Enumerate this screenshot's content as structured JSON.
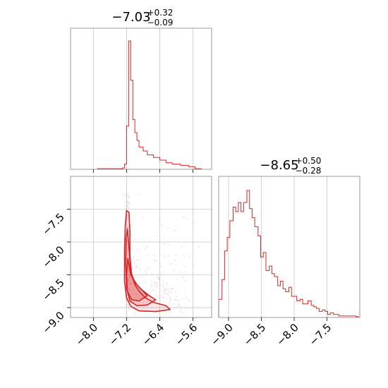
{
  "chart_data": [
    {
      "type": "histogram",
      "panel": "top-left",
      "title": {
        "value": "−7.03",
        "upper": "+0.32",
        "lower": "−0.09"
      },
      "xlim": [
        -8.55,
        -5.15
      ],
      "x_ticks": [
        -8.0,
        -7.2,
        -6.4,
        -5.6
      ],
      "show_x_tick_labels": false,
      "grid": true,
      "color": "#d62728",
      "bin_edges": [
        -7.9,
        -7.3,
        -7.25,
        -7.2,
        -7.15,
        -7.1,
        -7.05,
        -7.0,
        -6.95,
        -6.9,
        -6.8,
        -6.7,
        -6.55,
        -6.4,
        -6.25,
        -6.1,
        -5.9,
        -5.7,
        -5.55,
        -5.4
      ],
      "counts": [
        0.5,
        1,
        4,
        33,
        98,
        68,
        38,
        28,
        22,
        17,
        14,
        11,
        9,
        7,
        5,
        4,
        3,
        2,
        0.5
      ]
    },
    {
      "type": "scatter",
      "panel": "bottom-left",
      "xlim": [
        -8.55,
        -5.15
      ],
      "ylim": [
        -9.15,
        -7.0
      ],
      "x_ticks": [
        -8.0,
        -7.2,
        -6.4,
        -5.6
      ],
      "x_tick_labels": [
        "−8.0",
        "−7.2",
        "−6.4",
        "−5.6"
      ],
      "y_ticks": [
        -7.5,
        -8.0,
        -8.5,
        -9.0
      ],
      "y_tick_labels": [
        "−7.5",
        "−8.0",
        "−8.5",
        "−9.0"
      ],
      "grid": true,
      "color": "#d62728",
      "contours": [
        {
          "level": "outer",
          "points": [
            [
              -7.2,
              -7.52
            ],
            [
              -7.14,
              -7.55
            ],
            [
              -7.12,
              -7.85
            ],
            [
              -7.12,
              -8.2
            ],
            [
              -7.08,
              -8.5
            ],
            [
              -7.0,
              -8.65
            ],
            [
              -6.9,
              -8.75
            ],
            [
              -6.75,
              -8.85
            ],
            [
              -6.55,
              -8.92
            ],
            [
              -6.25,
              -8.97
            ],
            [
              -6.15,
              -9.03
            ],
            [
              -6.5,
              -9.06
            ],
            [
              -6.9,
              -9.05
            ],
            [
              -7.1,
              -8.98
            ],
            [
              -7.2,
              -8.85
            ],
            [
              -7.25,
              -8.6
            ],
            [
              -7.25,
              -8.1
            ],
            [
              -7.23,
              -7.75
            ]
          ]
        },
        {
          "level": "middle",
          "points": [
            [
              -7.18,
              -7.8
            ],
            [
              -7.14,
              -8.1
            ],
            [
              -7.1,
              -8.45
            ],
            [
              -7.0,
              -8.62
            ],
            [
              -6.85,
              -8.72
            ],
            [
              -6.65,
              -8.82
            ],
            [
              -6.5,
              -8.88
            ],
            [
              -6.7,
              -8.96
            ],
            [
              -6.95,
              -8.97
            ],
            [
              -7.12,
              -8.9
            ],
            [
              -7.2,
              -8.7
            ],
            [
              -7.22,
              -8.3
            ],
            [
              -7.21,
              -7.95
            ]
          ]
        },
        {
          "level": "inner",
          "points": [
            [
              -7.17,
              -8.25
            ],
            [
              -7.1,
              -8.5
            ],
            [
              -6.95,
              -8.65
            ],
            [
              -6.8,
              -8.75
            ],
            [
              -6.7,
              -8.82
            ],
            [
              -6.9,
              -8.9
            ],
            [
              -7.08,
              -8.88
            ],
            [
              -7.18,
              -8.75
            ],
            [
              -7.2,
              -8.5
            ]
          ]
        }
      ],
      "points_summary": "sparse light-red samples spread around the contours"
    },
    {
      "type": "histogram",
      "panel": "bottom-right",
      "title": {
        "value": "−8.65",
        "upper": "+0.50",
        "lower": "−0.28"
      },
      "xlim": [
        -9.15,
        -7.0
      ],
      "x_ticks": [
        -9.0,
        -8.5,
        -8.0,
        -7.5
      ],
      "x_tick_labels": [
        "−9.0",
        "−8.5",
        "−8.0",
        "−7.5"
      ],
      "grid": true,
      "color": "#d62728",
      "bin_edges": [
        -9.15,
        -9.1,
        -9.06,
        -9.02,
        -8.98,
        -8.93,
        -8.89,
        -8.85,
        -8.81,
        -8.77,
        -8.72,
        -8.68,
        -8.64,
        -8.6,
        -8.55,
        -8.51,
        -8.47,
        -8.43,
        -8.38,
        -8.34,
        -8.3,
        -8.25,
        -8.21,
        -8.17,
        -8.13,
        -8.08,
        -8.04,
        -8.0,
        -7.96,
        -7.91,
        -7.87,
        -7.83,
        -7.79,
        -7.74,
        -7.7,
        -7.66,
        -7.62,
        -7.57,
        -7.53,
        -7.49,
        -7.45,
        -7.4,
        -7.36,
        -7.32,
        -7.28,
        -7.23,
        -7.19,
        -7.15,
        -7.11,
        -7.06,
        -7.02
      ],
      "counts": [
        12,
        25,
        44,
        53,
        64,
        73,
        70,
        76,
        70,
        76,
        84,
        72,
        66,
        60,
        54,
        40,
        43,
        31,
        34,
        29,
        27,
        21,
        24,
        19,
        17,
        20,
        14,
        14,
        11,
        12,
        9,
        9,
        11,
        8,
        7,
        6,
        4,
        5,
        4,
        2,
        3,
        2,
        2,
        1,
        1,
        1,
        1,
        1,
        1,
        0.5
      ]
    }
  ]
}
